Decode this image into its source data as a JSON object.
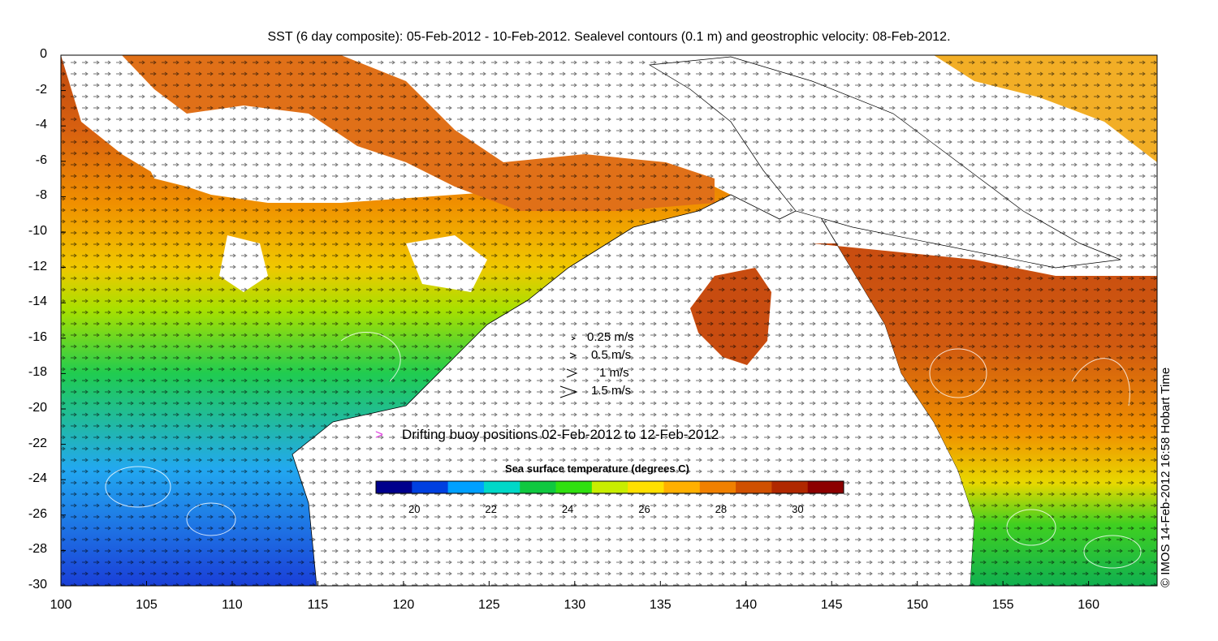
{
  "title": "SST (6 day composite): 05-Feb-2012 - 10-Feb-2012. Sealevel contours (0.1 m) and geostrophic velocity: 08-Feb-2012.",
  "credit": "© IMOS 14-Feb-2012 16:58 Hobart Time",
  "axes": {
    "x_ticks": [
      "100",
      "105",
      "110",
      "115",
      "120",
      "125",
      "130",
      "135",
      "140",
      "145",
      "150",
      "155",
      "160"
    ],
    "y_ticks": [
      "0",
      "-2",
      "-4",
      "-6",
      "-8",
      "-10",
      "-12",
      "-14",
      "-16",
      "-18",
      "-20",
      "-22",
      "-24",
      "-26",
      "-28",
      "-30"
    ],
    "xlim": [
      100,
      164
    ],
    "ylim": [
      -30,
      0
    ]
  },
  "velocity_legend": [
    {
      "label": "0.25 m/s",
      "speed": 0.25
    },
    {
      "label": "0.5 m/s",
      "speed": 0.5
    },
    {
      "label": "1 m/s",
      "speed": 1
    },
    {
      "label": "1.5 m/s",
      "speed": 1.5
    }
  ],
  "buoy_legend": {
    "symbol": ">",
    "label": "Drifting buoy positions 02-Feb-2012 to 12-Feb-2012",
    "color": "#e040e0"
  },
  "colorbar": {
    "title": "Sea surface temperature (degrees C)",
    "ticks": [
      "20",
      "22",
      "24",
      "26",
      "28",
      "30"
    ],
    "range": [
      19,
      31.2
    ],
    "colors": [
      "#00008c",
      "#0040e0",
      "#00a0ff",
      "#00d8c8",
      "#10c840",
      "#30e010",
      "#c8ee00",
      "#ffe000",
      "#ffb000",
      "#f08000",
      "#d05000",
      "#b02800",
      "#8c0000"
    ]
  },
  "chart_data": {
    "type": "heatmap",
    "title": "SST (6 day composite): 05-Feb-2012 - 10-Feb-2012. Sealevel contours (0.1 m) and geostrophic velocity: 08-Feb-2012.",
    "xlabel": "",
    "ylabel": "",
    "xlim": [
      100,
      164
    ],
    "ylim": [
      -30,
      0
    ],
    "value_range": [
      19,
      31.2
    ],
    "units": "degrees C"
  }
}
